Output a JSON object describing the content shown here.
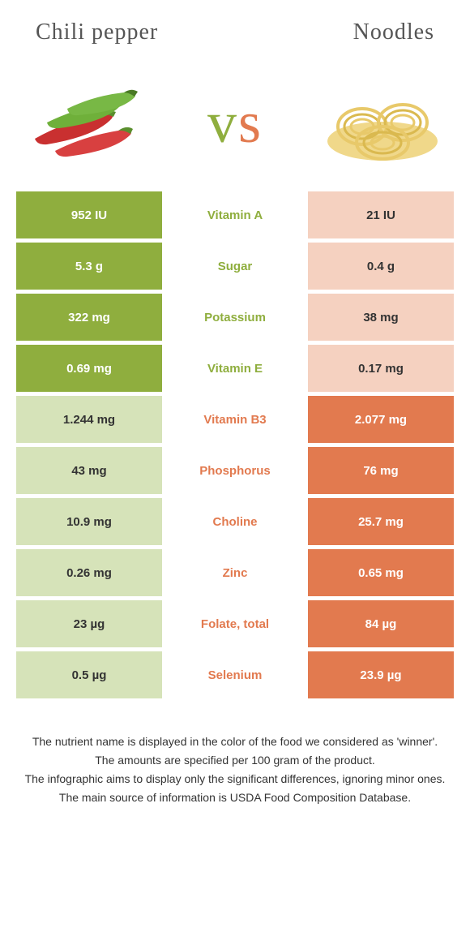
{
  "header": {
    "left": "Chili pepper",
    "right": "Noodles"
  },
  "vs": {
    "v": "v",
    "s": "s"
  },
  "colors": {
    "green": "#8fae3e",
    "orange": "#e27a4f",
    "lightgreen": "#d6e3b9",
    "lightorange": "#f5d1c0"
  },
  "rows": [
    {
      "left": "952 IU",
      "mid": "Vitamin A",
      "right": "21 IU",
      "winner": "left"
    },
    {
      "left": "5.3 g",
      "mid": "Sugar",
      "right": "0.4 g",
      "winner": "left"
    },
    {
      "left": "322 mg",
      "mid": "Potassium",
      "right": "38 mg",
      "winner": "left"
    },
    {
      "left": "0.69 mg",
      "mid": "Vitamin E",
      "right": "0.17 mg",
      "winner": "left"
    },
    {
      "left": "1.244 mg",
      "mid": "Vitamin B3",
      "right": "2.077 mg",
      "winner": "right"
    },
    {
      "left": "43 mg",
      "mid": "Phosphorus",
      "right": "76 mg",
      "winner": "right"
    },
    {
      "left": "10.9 mg",
      "mid": "Choline",
      "right": "25.7 mg",
      "winner": "right"
    },
    {
      "left": "0.26 mg",
      "mid": "Zinc",
      "right": "0.65 mg",
      "winner": "right"
    },
    {
      "left": "23 µg",
      "mid": "Folate, total",
      "right": "84 µg",
      "winner": "right"
    },
    {
      "left": "0.5 µg",
      "mid": "Selenium",
      "right": "23.9 µg",
      "winner": "right"
    }
  ],
  "footer": {
    "l1": "The nutrient name is displayed in the color of the food we considered as 'winner'.",
    "l2": "The amounts are specified per 100 gram of the product.",
    "l3": "The infographic aims to display only the significant differences, ignoring minor ones.",
    "l4": "The main source of information is USDA Food Composition Database."
  }
}
